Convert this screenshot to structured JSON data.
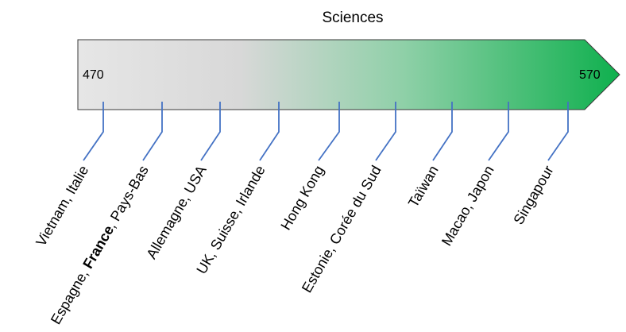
{
  "title": "Sciences",
  "scale": {
    "min_label": "470",
    "max_label": "570",
    "gradient": [
      "#e6e6e6",
      "#d6d6d6",
      "#7ccc98",
      "#12b050"
    ],
    "border_color": "#333333",
    "tick_color": "#4472c4"
  },
  "groups": [
    {
      "label": "Vietnam, Italie"
    },
    {
      "label_before": "Espagne, ",
      "label_bold": "France",
      "label_after": ", Pays-Bas"
    },
    {
      "label": "Allemagne, USA"
    },
    {
      "label": "UK, Suisse, Irlande"
    },
    {
      "label": "Hong Kong"
    },
    {
      "label": "Estonie, Corée du Sud"
    },
    {
      "label": "Taïwan"
    },
    {
      "label": "Macao, Japon"
    },
    {
      "label": "Singapour"
    }
  ]
}
